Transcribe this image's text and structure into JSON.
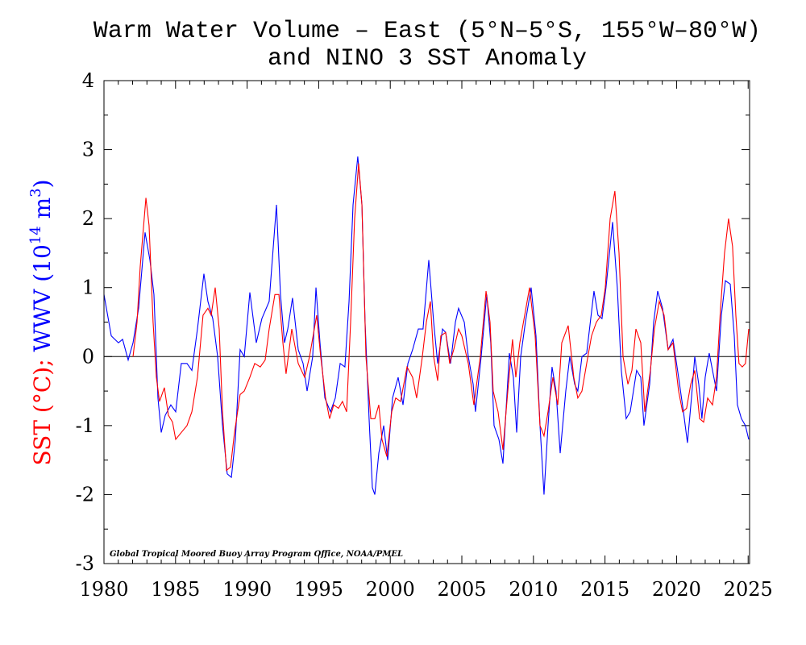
{
  "chart_data": {
    "type": "line",
    "title": [
      "Warm Water Volume – East (5°N–5°S, 155°W–80°W)",
      "and NINO 3 SST Anomaly"
    ],
    "ylabel": {
      "sst": "SST (°C);",
      "wwv": " WWV (10",
      "wwv_exp": "14",
      "unit": " m",
      "unit_exp": "3",
      "close": ")"
    },
    "credit": "Global Tropical Moored Buoy Array Program Office, NOAA/PMEL",
    "xlim": [
      1980,
      2025.1
    ],
    "xticks": [
      1980,
      1985,
      1990,
      1995,
      2000,
      2005,
      2010,
      2015,
      2020,
      2025
    ],
    "xminorticks": [
      1981,
      1982,
      1983,
      1984,
      1986,
      1987,
      1988,
      1989,
      1991,
      1992,
      1993,
      1994,
      1996,
      1997,
      1998,
      1999,
      2001,
      2002,
      2003,
      2004,
      2006,
      2007,
      2008,
      2009,
      2011,
      2012,
      2013,
      2014,
      2016,
      2017,
      2018,
      2019,
      2021,
      2022,
      2023,
      2024
    ],
    "ylim": [
      -3,
      4
    ],
    "yticks": [
      -3,
      -2,
      -1,
      0,
      1,
      2,
      3,
      4
    ],
    "yminorticks": [
      -2.5,
      -1.5,
      -0.5,
      0.5,
      1.5,
      2.5,
      3.5
    ],
    "reference_line": 0,
    "series": [
      {
        "name": "WWV",
        "color": "#0000ff",
        "x": [
          1980.0,
          1980.51,
          1981.01,
          1981.3,
          1981.69,
          1982.03,
          1982.42,
          1982.87,
          1983.21,
          1983.49,
          1983.77,
          1984.0,
          1984.28,
          1984.67,
          1985.01,
          1985.4,
          1985.8,
          1986.14,
          1986.53,
          1986.98,
          1987.26,
          1987.6,
          1987.94,
          1988.28,
          1988.61,
          1988.9,
          1989.18,
          1989.51,
          1989.8,
          1990.19,
          1990.64,
          1991.03,
          1991.54,
          1992.05,
          1992.33,
          1992.61,
          1992.84,
          1993.17,
          1993.57,
          1993.91,
          1994.19,
          1994.58,
          1994.81,
          1995.09,
          1995.43,
          1995.82,
          1996.16,
          1996.5,
          1996.83,
          1997.12,
          1997.4,
          1997.73,
          1998.02,
          1998.24,
          1998.52,
          1998.75,
          1998.92,
          1999.2,
          1999.54,
          1999.82,
          2000.16,
          2000.55,
          2000.89,
          2001.23,
          2001.56,
          2001.96,
          2002.29,
          2002.69,
          2003.03,
          2003.31,
          2003.65,
          2003.87,
          2004.21,
          2004.55,
          2004.77,
          2005.17,
          2005.45,
          2005.79,
          2005.95,
          2006.35,
          2006.74,
          2007.02,
          2007.25,
          2007.59,
          2007.87,
          2008.32,
          2008.6,
          2008.83,
          2009.11,
          2009.44,
          2009.84,
          2010.18,
          2010.46,
          2010.74,
          2011.02,
          2011.3,
          2011.58,
          2011.87,
          2012.26,
          2012.54,
          2012.88,
          2013.1,
          2013.39,
          2013.72,
          2014.23,
          2014.51,
          2014.79,
          2015.07,
          2015.53,
          2015.86,
          2016.14,
          2016.48,
          2016.76,
          2017.21,
          2017.5,
          2017.72,
          2018.12,
          2018.4,
          2018.68,
          2019.02,
          2019.41,
          2019.75,
          2020.14,
          2020.48,
          2020.76,
          2021.04,
          2021.27,
          2021.55,
          2021.77,
          2022.0,
          2022.28,
          2022.51,
          2022.79,
          2023.13,
          2023.41,
          2023.75,
          2024.03,
          2024.25,
          2024.53,
          2024.81,
          2025.04
        ],
        "values": [
          0.9,
          0.3,
          0.2,
          0.25,
          -0.05,
          0.2,
          0.7,
          1.8,
          1.4,
          0.9,
          -0.6,
          -1.1,
          -0.85,
          -0.7,
          -0.8,
          -0.1,
          -0.1,
          -0.2,
          0.4,
          1.2,
          0.8,
          0.55,
          0.0,
          -1.0,
          -1.7,
          -1.75,
          -1.2,
          0.1,
          0.0,
          0.93,
          0.2,
          0.55,
          0.8,
          2.2,
          0.9,
          0.2,
          0.4,
          0.85,
          0.1,
          -0.1,
          -0.5,
          0.0,
          1.0,
          0.2,
          -0.6,
          -0.8,
          -0.6,
          -0.1,
          -0.15,
          0.8,
          2.2,
          2.9,
          2.2,
          0.5,
          -0.9,
          -1.9,
          -2.0,
          -1.4,
          -1.0,
          -1.5,
          -0.6,
          -0.3,
          -0.7,
          -0.1,
          0.1,
          0.4,
          0.4,
          1.4,
          0.5,
          -0.1,
          0.4,
          0.35,
          -0.1,
          0.5,
          0.7,
          0.5,
          0.0,
          -0.4,
          -0.8,
          0.0,
          0.9,
          0.2,
          -1.0,
          -1.2,
          -1.55,
          0.05,
          -0.3,
          -1.1,
          0.0,
          0.5,
          1.0,
          0.3,
          -1.0,
          -2.0,
          -1.0,
          -0.15,
          -0.5,
          -1.4,
          -0.5,
          0.0,
          -0.4,
          -0.5,
          0.0,
          0.05,
          0.95,
          0.6,
          0.55,
          1.0,
          1.95,
          1.0,
          -0.2,
          -0.9,
          -0.8,
          -0.2,
          -0.3,
          -1.0,
          -0.4,
          0.5,
          0.95,
          0.7,
          0.1,
          0.25,
          -0.3,
          -0.8,
          -1.25,
          -0.6,
          0.0,
          -0.4,
          -0.9,
          -0.3,
          0.05,
          -0.2,
          -0.5,
          0.6,
          1.1,
          1.05,
          0.3,
          -0.7,
          -0.9,
          -1.0,
          -1.2
        ]
      },
      {
        "name": "SST",
        "color": "#ff0000",
        "x": [
          1982.03,
          1982.31,
          1982.53,
          1982.93,
          1983.15,
          1983.43,
          1983.66,
          1983.88,
          1984.22,
          1984.5,
          1984.79,
          1985.01,
          1985.4,
          1985.8,
          1986.14,
          1986.53,
          1986.92,
          1987.26,
          1987.49,
          1987.77,
          1988.05,
          1988.28,
          1988.56,
          1988.84,
          1989.12,
          1989.51,
          1989.8,
          1990.19,
          1990.53,
          1990.92,
          1991.26,
          1991.54,
          1991.94,
          1992.22,
          1992.5,
          1992.72,
          1993.12,
          1993.57,
          1994.02,
          1994.36,
          1994.86,
          1995.14,
          1995.48,
          1995.76,
          1996.05,
          1996.38,
          1996.66,
          1996.95,
          1997.23,
          1997.51,
          1997.79,
          1998.02,
          1998.3,
          1998.64,
          1998.92,
          1999.2,
          1999.42,
          1999.76,
          2000.1,
          2000.38,
          2000.72,
          2001.17,
          2001.56,
          2001.84,
          2002.24,
          2002.52,
          2002.8,
          2003.03,
          2003.31,
          2003.53,
          2003.87,
          2004.15,
          2004.43,
          2004.77,
          2005.0,
          2005.45,
          2005.84,
          2006.29,
          2006.69,
          2006.97,
          2007.19,
          2007.53,
          2007.87,
          2008.21,
          2008.54,
          2008.77,
          2009.05,
          2009.39,
          2009.73,
          2010.12,
          2010.46,
          2010.74,
          2011.02,
          2011.36,
          2011.7,
          2011.98,
          2012.43,
          2012.82,
          2013.1,
          2013.39,
          2013.72,
          2014.06,
          2014.4,
          2014.74,
          2015.02,
          2015.36,
          2015.69,
          2015.98,
          2016.26,
          2016.6,
          2016.88,
          2017.16,
          2017.5,
          2017.78,
          2018.17,
          2018.45,
          2018.79,
          2019.13,
          2019.41,
          2019.75,
          2020.14,
          2020.42,
          2020.7,
          2020.99,
          2021.27,
          2021.61,
          2021.89,
          2022.17,
          2022.51,
          2022.79,
          2023.07,
          2023.35,
          2023.63,
          2023.91,
          2024.14,
          2024.36,
          2024.59,
          2024.81,
          2025.04
        ],
        "values": [
          0.0,
          0.5,
          1.3,
          2.3,
          1.9,
          0.5,
          -0.3,
          -0.65,
          -0.45,
          -0.85,
          -0.95,
          -1.2,
          -1.1,
          -1.0,
          -0.8,
          -0.3,
          0.6,
          0.7,
          0.6,
          1.0,
          0.4,
          -0.8,
          -1.65,
          -1.6,
          -1.1,
          -0.55,
          -0.5,
          -0.3,
          -0.1,
          -0.15,
          -0.05,
          0.4,
          0.9,
          0.9,
          0.2,
          -0.25,
          0.4,
          -0.1,
          -0.3,
          0.0,
          0.6,
          0.0,
          -0.6,
          -0.9,
          -0.7,
          -0.75,
          -0.65,
          -0.8,
          0.5,
          2.0,
          2.8,
          2.2,
          0.0,
          -0.9,
          -0.9,
          -0.7,
          -1.2,
          -1.45,
          -0.8,
          -0.6,
          -0.65,
          -0.15,
          -0.3,
          -0.6,
          0.0,
          0.5,
          0.8,
          0.0,
          -0.35,
          0.3,
          0.35,
          -0.1,
          0.1,
          0.4,
          0.3,
          -0.1,
          -0.7,
          0.0,
          0.95,
          0.5,
          -0.5,
          -0.8,
          -1.35,
          -0.5,
          0.25,
          -0.3,
          0.2,
          0.6,
          1.0,
          0.3,
          -1.0,
          -1.15,
          -0.8,
          -0.3,
          -0.7,
          0.2,
          0.45,
          -0.3,
          -0.6,
          -0.5,
          -0.1,
          0.3,
          0.5,
          0.6,
          1.0,
          2.0,
          2.4,
          1.5,
          0.0,
          -0.4,
          -0.2,
          0.4,
          0.2,
          -0.8,
          -0.2,
          0.4,
          0.8,
          0.6,
          0.1,
          0.2,
          -0.5,
          -0.8,
          -0.75,
          -0.4,
          -0.2,
          -0.9,
          -0.95,
          -0.6,
          -0.7,
          -0.3,
          0.7,
          1.5,
          2.0,
          1.6,
          0.6,
          -0.1,
          -0.15,
          -0.1,
          0.4
        ]
      }
    ]
  }
}
